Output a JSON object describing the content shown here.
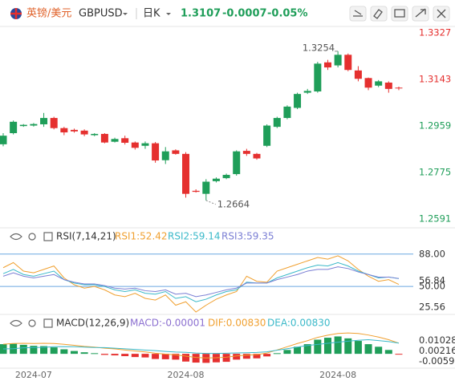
{
  "header": {
    "pair_name": "英镑/美元",
    "symbol": "GBPUSD",
    "period": "日K",
    "price": "1.3107",
    "change": "-0.0007",
    "change_pct": "-0.05%"
  },
  "chart_data": [
    {
      "type": "candlestick",
      "up_color": "#1f9e59",
      "down_color": "#e5302f",
      "categories": [
        null,
        null,
        null,
        "2024-07",
        null,
        null,
        null,
        null,
        null,
        null,
        null,
        null,
        null,
        null,
        null,
        null,
        null,
        null,
        "2024-08",
        null,
        null,
        null,
        null,
        null,
        null,
        null,
        null,
        null,
        null,
        null,
        null,
        null,
        null,
        "2024-08",
        null,
        null,
        null,
        null,
        null,
        null
      ],
      "open": [
        1.2886,
        1.293,
        1.2958,
        1.296,
        1.2965,
        1.299,
        1.295,
        1.2943,
        1.294,
        1.2922,
        1.2927,
        1.2896,
        1.291,
        1.2893,
        1.288,
        1.289,
        1.2823,
        1.2862,
        1.2848,
        1.2702,
        1.269,
        1.274,
        1.2752,
        1.2768,
        1.286,
        1.2848,
        1.288,
        1.2955,
        1.299,
        1.303,
        1.309,
        1.3095,
        1.321,
        1.3198,
        1.324,
        1.3178,
        1.3148,
        1.3118,
        1.313,
        1.311
      ],
      "high": [
        1.293,
        1.298,
        1.2966,
        1.297,
        1.301,
        1.2995,
        1.2955,
        1.2948,
        1.2945,
        1.293,
        1.293,
        1.2912,
        1.292,
        1.2897,
        1.2897,
        1.2895,
        1.2875,
        1.2866,
        1.2855,
        1.2708,
        1.2748,
        1.2755,
        1.277,
        1.2862,
        1.2868,
        1.2852,
        1.2965,
        1.2995,
        1.304,
        1.309,
        1.3105,
        1.3212,
        1.322,
        1.3254,
        1.3245,
        1.3195,
        1.315,
        1.314,
        1.3135,
        1.3114
      ],
      "low": [
        1.2878,
        1.2925,
        1.2955,
        1.2956,
        1.2955,
        1.2945,
        1.2922,
        1.2932,
        1.2918,
        1.2918,
        1.289,
        1.2893,
        1.2885,
        1.2865,
        1.2868,
        1.2813,
        1.2808,
        1.2845,
        1.2675,
        1.2695,
        1.2664,
        1.2735,
        1.2748,
        1.2762,
        1.284,
        1.2825,
        1.2875,
        1.295,
        1.2985,
        1.3025,
        1.3085,
        1.309,
        1.318,
        1.319,
        1.3175,
        1.3135,
        1.31,
        1.3112,
        1.309,
        1.31
      ],
      "close": [
        1.292,
        1.2975,
        1.2963,
        1.2966,
        1.299,
        1.295,
        1.2933,
        1.2937,
        1.2925,
        1.2927,
        1.2893,
        1.2907,
        1.2892,
        1.2872,
        1.289,
        1.2822,
        1.2858,
        1.2848,
        1.269,
        1.2698,
        1.2738,
        1.275,
        1.2765,
        1.2858,
        1.2848,
        1.283,
        1.296,
        1.299,
        1.3035,
        1.3085,
        1.3097,
        1.3205,
        1.319,
        1.324,
        1.318,
        1.3145,
        1.311,
        1.3135,
        1.3105,
        1.3107
      ],
      "max_label": "1.3254",
      "min_label": "1.2664",
      "ylim": [
        1.2562,
        1.3352
      ],
      "yticks": [
        1.3327,
        1.3143,
        1.2959,
        1.2775,
        1.2591
      ],
      "ytick_colors": [
        "#e5302f",
        "#e5302f",
        "#1f9e59",
        "#1f9e59",
        "#1f9e59"
      ]
    },
    {
      "type": "line",
      "title": "RSI(7,14,21)",
      "ylim": [
        20,
        100
      ],
      "yticks": [
        {
          "value": 88,
          "label": "88.00"
        },
        {
          "value": 56.84,
          "label": "56.84"
        },
        {
          "value": 50,
          "label": "50.00"
        },
        {
          "value": 25.56,
          "label": "25.56"
        }
      ],
      "reference_lines": [
        88,
        50
      ],
      "reference_color": "#6aa8e0",
      "series": [
        {
          "name": "RSI1",
          "legend_label": "RSI1:52.42",
          "color": "#f0a030",
          "values": [
            72,
            78,
            68,
            66,
            70,
            74,
            60,
            52,
            48,
            50,
            46,
            40,
            38,
            42,
            36,
            34,
            40,
            28,
            32,
            20,
            28,
            35,
            40,
            44,
            62,
            56,
            55,
            68,
            72,
            76,
            80,
            84,
            82,
            86,
            80,
            70,
            62,
            56,
            58,
            52.42
          ]
        },
        {
          "name": "RSI2",
          "legend_label": "RSI2:59.14",
          "color": "#3bb9c9",
          "values": [
            65,
            70,
            64,
            62,
            65,
            68,
            58,
            54,
            52,
            52,
            50,
            46,
            44,
            46,
            42,
            41,
            44,
            36,
            38,
            32,
            35,
            40,
            44,
            46,
            55,
            54,
            54,
            60,
            64,
            68,
            72,
            75,
            74,
            78,
            74,
            68,
            64,
            60,
            61,
            59.14
          ]
        },
        {
          "name": "RSI3",
          "legend_label": "RSI3:59.35",
          "color": "#7b7fd4",
          "values": [
            62,
            66,
            62,
            60,
            62,
            64,
            58,
            55,
            53,
            53,
            51,
            48,
            47,
            48,
            45,
            44,
            46,
            41,
            42,
            38,
            40,
            43,
            46,
            48,
            54,
            54,
            54,
            58,
            61,
            64,
            68,
            70,
            70,
            73,
            71,
            67,
            64,
            61,
            61,
            59.35
          ]
        }
      ]
    },
    {
      "type": "combo",
      "title": "MACD(12,26,9)",
      "ylim": [
        -0.0105,
        0.0225
      ],
      "yticks": [
        0.01028,
        0.00216,
        -0.00596
      ],
      "bars": {
        "name": "MACD",
        "legend_label": "MACD:-0.00001",
        "color": "#8b6fd0",
        "up_color": "#1f9e59",
        "down_color": "#e5302f",
        "values": [
          0.0075,
          0.0078,
          0.007,
          0.0062,
          0.006,
          0.005,
          0.0035,
          0.0022,
          0.0012,
          0.0005,
          -0.0008,
          -0.0012,
          -0.0018,
          -0.0025,
          -0.0028,
          -0.004,
          -0.0042,
          -0.0045,
          -0.006,
          -0.0068,
          -0.007,
          -0.0066,
          -0.0062,
          -0.0045,
          -0.0038,
          -0.0035,
          -0.002,
          0.0005,
          0.003,
          0.0055,
          0.0075,
          0.011,
          0.0125,
          0.0135,
          0.012,
          0.01,
          0.0075,
          0.0055,
          0.003,
          -1e-05
        ]
      },
      "series": [
        {
          "name": "DIF",
          "legend_label": "DIF:0.00830",
          "color": "#f0a030",
          "values": [
            0.0075,
            0.008,
            0.0082,
            0.008,
            0.0082,
            0.008,
            0.0074,
            0.0066,
            0.0058,
            0.0052,
            0.0044,
            0.0038,
            0.003,
            0.0022,
            0.0015,
            0.0005,
            -0.0002,
            -0.0008,
            -0.0018,
            -0.0028,
            -0.0032,
            -0.003,
            -0.0026,
            -0.0016,
            -0.001,
            -0.0006,
            0.0006,
            0.003,
            0.0055,
            0.008,
            0.0102,
            0.0128,
            0.0145,
            0.0158,
            0.0162,
            0.0158,
            0.0146,
            0.013,
            0.011,
            0.0083
          ]
        },
        {
          "name": "DEA",
          "legend_label": "DEA:0.00830",
          "color": "#3bb9c9",
          "values": [
            0.0038,
            0.004,
            0.0047,
            0.0049,
            0.0051,
            0.0055,
            0.0056,
            0.0055,
            0.0052,
            0.0049,
            0.0048,
            0.0044,
            0.0039,
            0.0034,
            0.0029,
            0.0025,
            0.0019,
            0.0014,
            0.0012,
            0.0006,
            0.0003,
            0.0003,
            0.0005,
            0.0007,
            0.0009,
            0.0011,
            0.0016,
            0.0028,
            0.004,
            0.0052,
            0.0065,
            0.0073,
            0.0082,
            0.009,
            0.0098,
            0.0105,
            0.011,
            0.0103,
            0.0095,
            0.0083
          ]
        }
      ]
    }
  ]
}
